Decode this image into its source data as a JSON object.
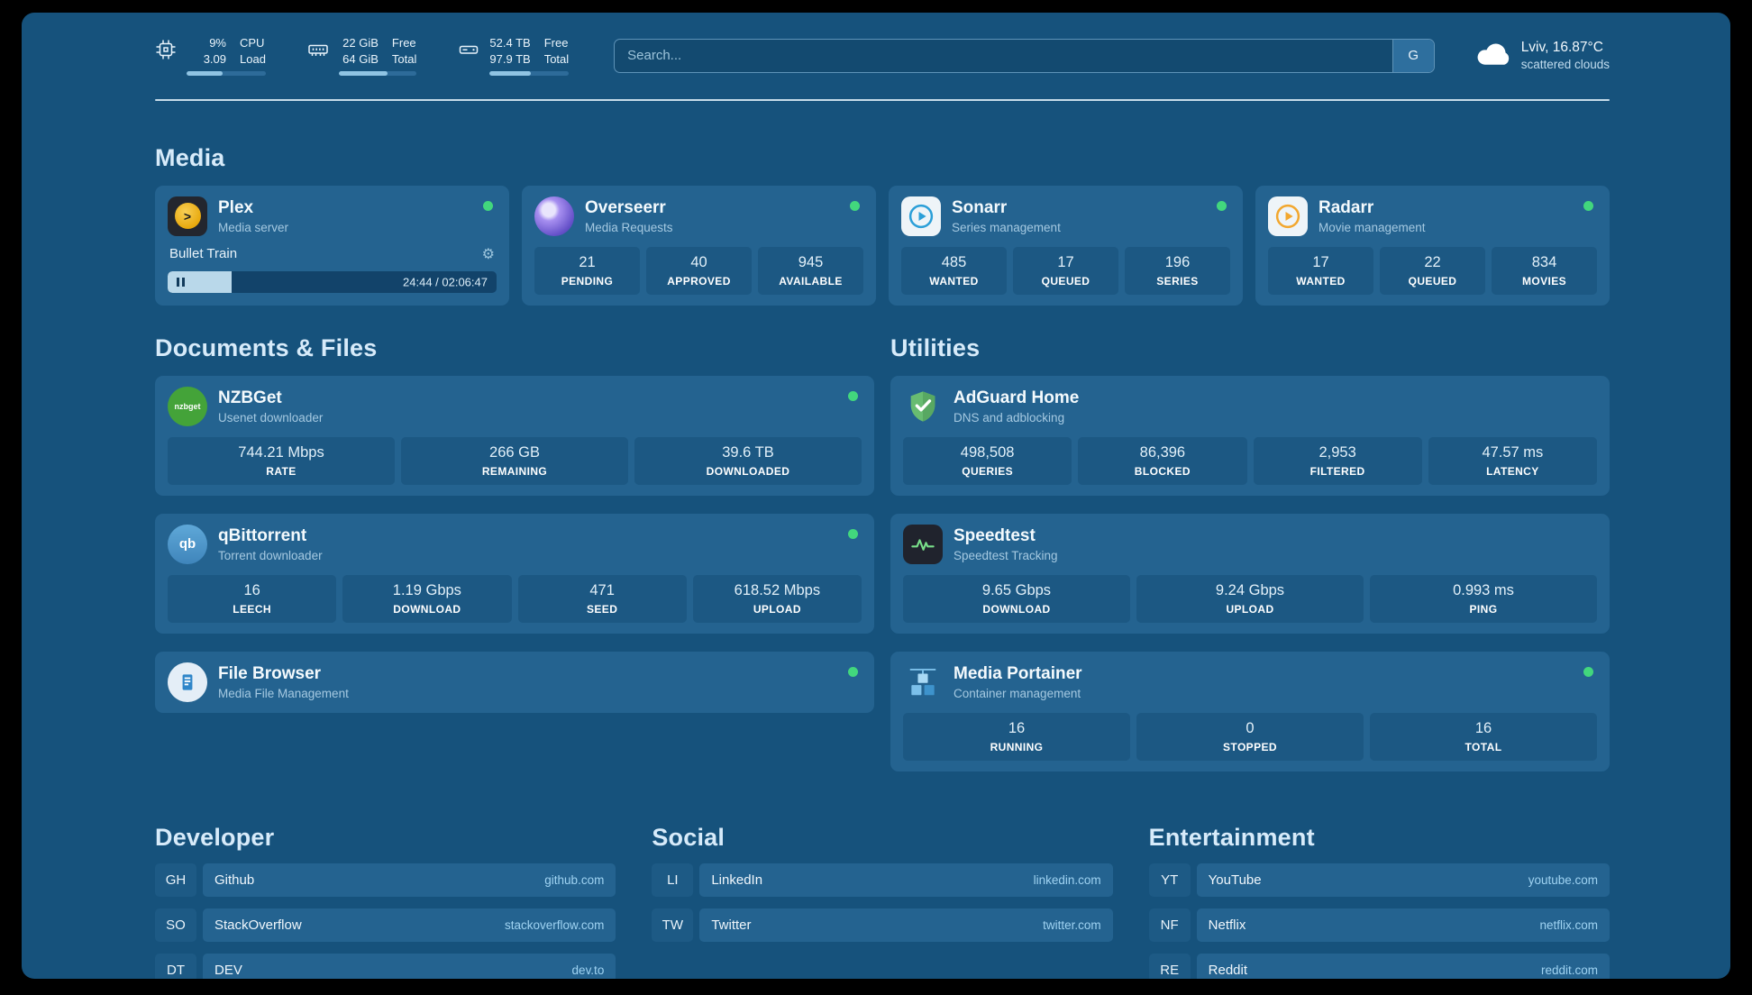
{
  "topbar": {
    "cpu": {
      "v1": "9%",
      "v2": "3.09",
      "l1": "CPU",
      "l2": "Load",
      "bar": "45%"
    },
    "ram": {
      "v1": "22 GiB",
      "v2": "64 GiB",
      "l1": "Free",
      "l2": "Total",
      "bar": "62%"
    },
    "disk": {
      "v1": "52.4 TB",
      "v2": "97.9 TB",
      "l1": "Free",
      "l2": "Total",
      "bar": "52%"
    },
    "search": {
      "placeholder": "Search...",
      "engine_label": "G"
    },
    "weather": {
      "location": "Lviv, 16.87°C",
      "condition": "scattered clouds"
    }
  },
  "media": {
    "title": "Media",
    "plex": {
      "name": "Plex",
      "subtitle": "Media server",
      "now_playing": "Bullet Train",
      "time": "24:44 / 02:06:47",
      "progress": "19.5%"
    },
    "overseerr": {
      "name": "Overseerr",
      "subtitle": "Media Requests",
      "stats": [
        {
          "value": "21",
          "label": "PENDING"
        },
        {
          "value": "40",
          "label": "APPROVED"
        },
        {
          "value": "945",
          "label": "AVAILABLE"
        }
      ]
    },
    "sonarr": {
      "name": "Sonarr",
      "subtitle": "Series management",
      "stats": [
        {
          "value": "485",
          "label": "WANTED"
        },
        {
          "value": "17",
          "label": "QUEUED"
        },
        {
          "value": "196",
          "label": "SERIES"
        }
      ]
    },
    "radarr": {
      "name": "Radarr",
      "subtitle": "Movie management",
      "stats": [
        {
          "value": "17",
          "label": "WANTED"
        },
        {
          "value": "22",
          "label": "QUEUED"
        },
        {
          "value": "834",
          "label": "MOVIES"
        }
      ]
    }
  },
  "documents": {
    "title": "Documents & Files",
    "nzbget": {
      "name": "NZBGet",
      "subtitle": "Usenet downloader",
      "icon_text": "nzbget",
      "stats": [
        {
          "value": "744.21 Mbps",
          "label": "RATE"
        },
        {
          "value": "266 GB",
          "label": "REMAINING"
        },
        {
          "value": "39.6 TB",
          "label": "DOWNLOADED"
        }
      ]
    },
    "qbittorrent": {
      "name": "qBittorrent",
      "subtitle": "Torrent downloader",
      "icon_text": "qb",
      "stats": [
        {
          "value": "16",
          "label": "LEECH"
        },
        {
          "value": "1.19 Gbps",
          "label": "DOWNLOAD"
        },
        {
          "value": "471",
          "label": "SEED"
        },
        {
          "value": "618.52 Mbps",
          "label": "UPLOAD"
        }
      ]
    },
    "filebrowser": {
      "name": "File Browser",
      "subtitle": "Media File Management"
    }
  },
  "utilities": {
    "title": "Utilities",
    "adguard": {
      "name": "AdGuard Home",
      "subtitle": "DNS and adblocking",
      "stats": [
        {
          "value": "498,508",
          "label": "QUERIES"
        },
        {
          "value": "86,396",
          "label": "BLOCKED"
        },
        {
          "value": "2,953",
          "label": "FILTERED"
        },
        {
          "value": "47.57 ms",
          "label": "LATENCY"
        }
      ]
    },
    "speedtest": {
      "name": "Speedtest",
      "subtitle": "Speedtest Tracking",
      "stats": [
        {
          "value": "9.65 Gbps",
          "label": "DOWNLOAD"
        },
        {
          "value": "9.24 Gbps",
          "label": "UPLOAD"
        },
        {
          "value": "0.993 ms",
          "label": "PING"
        }
      ]
    },
    "portainer": {
      "name": "Media Portainer",
      "subtitle": "Container management",
      "stats": [
        {
          "value": "16",
          "label": "RUNNING"
        },
        {
          "value": "0",
          "label": "STOPPED"
        },
        {
          "value": "16",
          "label": "TOTAL"
        }
      ]
    }
  },
  "bookmarks": [
    {
      "title": "Developer",
      "items": [
        {
          "abbr": "GH",
          "name": "Github",
          "url": "github.com"
        },
        {
          "abbr": "SO",
          "name": "StackOverflow",
          "url": "stackoverflow.com"
        },
        {
          "abbr": "DT",
          "name": "DEV",
          "url": "dev.to"
        }
      ]
    },
    {
      "title": "Social",
      "items": [
        {
          "abbr": "LI",
          "name": "LinkedIn",
          "url": "linkedin.com"
        },
        {
          "abbr": "TW",
          "name": "Twitter",
          "url": "twitter.com"
        }
      ]
    },
    {
      "title": "Entertainment",
      "items": [
        {
          "abbr": "YT",
          "name": "YouTube",
          "url": "youtube.com"
        },
        {
          "abbr": "NF",
          "name": "Netflix",
          "url": "netflix.com"
        },
        {
          "abbr": "RE",
          "name": "Reddit",
          "url": "reddit.com"
        }
      ]
    }
  ]
}
